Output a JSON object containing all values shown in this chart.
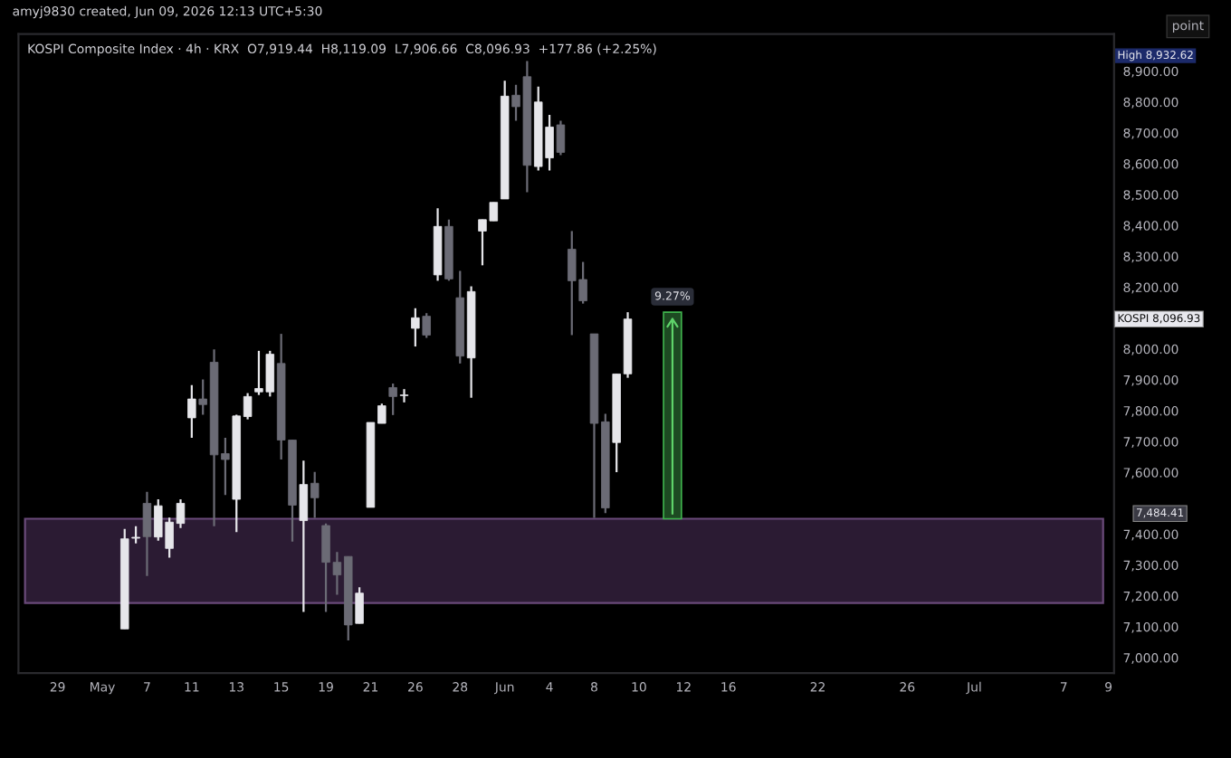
{
  "chart_data": {
    "type": "candlestick",
    "title": "KOSPI Composite Index · 4h · KRX",
    "subtitle": "O7,919.44  H8,119.09  L7,906.66  C8,096.93  +177.86 (+2.25%)",
    "categories": [
      null,
      null,
      null,
      "29",
      null,
      null,
      null,
      "May",
      null,
      null,
      null,
      "7",
      null,
      null,
      null,
      "11",
      null,
      null,
      null,
      "13",
      null,
      null,
      null,
      "15",
      null,
      null,
      null,
      "19",
      null,
      null,
      null,
      "21",
      null,
      null,
      null,
      "26",
      null,
      null,
      null,
      "28",
      null,
      null,
      null,
      "Jun",
      null,
      null,
      null,
      "4",
      null,
      null,
      null,
      "8",
      null,
      null,
      null,
      "10",
      null,
      null,
      null,
      "12",
      null,
      null,
      null,
      "16",
      null,
      null,
      null,
      null,
      null,
      null,
      null,
      "22",
      null,
      null,
      null,
      null,
      null,
      null,
      null,
      "26",
      null,
      null,
      null,
      null,
      null,
      "Jul",
      null,
      null,
      null,
      null,
      null,
      null,
      null,
      "7",
      null,
      null,
      null,
      "9"
    ],
    "ohlc": [
      null,
      null,
      null,
      null,
      null,
      null,
      null,
      null,
      null,
      [
        7093,
        7417,
        7093,
        7385
      ],
      [
        7387,
        7426,
        7370,
        7390
      ],
      [
        7500,
        7537,
        7265,
        7392
      ],
      [
        7391,
        7513,
        7379,
        7492
      ],
      [
        7354,
        7454,
        7324,
        7439
      ],
      [
        7435,
        7513,
        7420,
        7500
      ],
      [
        7777,
        7883,
        7712,
        7838
      ],
      [
        7838,
        7901,
        7787,
        7820
      ],
      [
        7957,
        7999,
        7426,
        7657
      ],
      [
        7661,
        7712,
        7527,
        7642
      ],
      [
        7513,
        7787,
        7407,
        7783
      ],
      [
        7781,
        7857,
        7772,
        7846
      ],
      [
        7861,
        7994,
        7851,
        7872
      ],
      [
        7861,
        7994,
        7846,
        7983
      ],
      [
        7953,
        8049,
        7642,
        7705
      ],
      [
        7705,
        7705,
        7376,
        7494
      ],
      [
        7444,
        7638,
        7148,
        7561
      ],
      [
        7565,
        7602,
        7453,
        7518
      ],
      [
        7428,
        7435,
        7148,
        7309
      ],
      [
        7309,
        7342,
        7204,
        7268
      ],
      [
        7328,
        7328,
        7056,
        7106
      ],
      [
        7111,
        7228,
        7111,
        7209
      ],
      [
        7487,
        7762,
        7487,
        7762
      ],
      [
        7759,
        7823,
        7759,
        7816
      ],
      [
        7875,
        7888,
        7786,
        7846
      ],
      [
        7849,
        7870,
        7827,
        7851
      ],
      [
        8067,
        8132,
        8008,
        8101
      ],
      [
        8106,
        8116,
        8036,
        8045
      ],
      [
        8240,
        8456,
        8221,
        8397
      ],
      [
        8397,
        8419,
        8221,
        8227
      ],
      [
        8166,
        8253,
        7953,
        7977
      ],
      [
        7971,
        8203,
        7842,
        8186
      ],
      [
        8382,
        8419,
        8271,
        8419
      ],
      [
        8415,
        8475,
        8415,
        8475
      ],
      [
        8486,
        8869,
        8486,
        8819
      ],
      [
        8822,
        8856,
        8739,
        8785
      ],
      [
        8882,
        8933,
        8508,
        8595
      ],
      [
        8591,
        8850,
        8578,
        8800
      ],
      [
        8619,
        8758,
        8578,
        8719
      ],
      [
        8726,
        8739,
        8628,
        8637
      ],
      [
        8323,
        8382,
        8045,
        8221
      ],
      [
        8225,
        8282,
        8147,
        8156
      ],
      [
        8049,
        8049,
        7453,
        7759
      ],
      [
        7764,
        7790,
        7468,
        7485
      ],
      [
        7697,
        7919,
        7601,
        7919
      ],
      [
        7919.44,
        8119.09,
        7906.66,
        8096.93
      ],
      null,
      null,
      null,
      null,
      null,
      null,
      null,
      null,
      null,
      null,
      null,
      null,
      null,
      null,
      null,
      null,
      null,
      null,
      null,
      null,
      null,
      null,
      null,
      null,
      null,
      null,
      null,
      null,
      null,
      null,
      null,
      null,
      null,
      null,
      null,
      null,
      null,
      null,
      null,
      null,
      null,
      null,
      null
    ],
    "colors": [
      null,
      null,
      null,
      null,
      null,
      null,
      null,
      null,
      null,
      "#e6e6ea",
      "#e6e6ea",
      "#6b6b75",
      "#e6e6ea",
      "#e6e6ea",
      "#e6e6ea",
      "#e6e6ea",
      "#6b6b75",
      "#6b6b75",
      "#6b6b75",
      "#e6e6ea",
      "#e6e6ea",
      "#e6e6ea",
      "#e6e6ea",
      "#6b6b75",
      "#6b6b75",
      "#e6e6ea",
      "#6b6b75",
      "#6b6b75",
      "#6b6b75",
      "#6b6b75",
      "#e6e6ea",
      "#e6e6ea",
      "#e6e6ea",
      "#6b6b75",
      "#e6e6ea",
      "#e6e6ea",
      "#6b6b75",
      "#e6e6ea",
      "#6b6b75",
      "#6b6b75",
      "#e6e6ea",
      "#e6e6ea",
      "#e6e6ea",
      "#e6e6ea",
      "#6b6b75",
      "#6b6b75",
      "#e6e6ea",
      "#e6e6ea",
      "#6b6b75",
      "#6b6b75",
      "#6b6b75",
      "#6b6b75",
      "#6b6b75",
      "#e6e6ea",
      "#e6e6ea",
      null,
      null,
      null,
      null,
      null,
      null,
      null,
      null,
      null,
      null,
      null,
      null,
      null,
      null,
      null,
      null,
      null,
      null,
      null,
      null,
      null,
      null,
      null,
      null,
      null,
      null,
      null,
      null,
      null,
      null,
      null,
      null,
      null,
      null,
      null,
      null,
      null,
      null,
      null,
      null,
      null,
      null,
      null
    ],
    "ylim": [
      6950,
      9020
    ],
    "yticks": [
      {
        "value": 7000,
        "label": "7,000.00"
      },
      {
        "value": 7100,
        "label": "7,100.00"
      },
      {
        "value": 7200,
        "label": "7,200.00"
      },
      {
        "value": 7300,
        "label": "7,300.00"
      },
      {
        "value": 7400,
        "label": "7,400.00"
      },
      {
        "value": 7600,
        "label": "7,600.00"
      },
      {
        "value": 7700,
        "label": "7,700.00"
      },
      {
        "value": 7800,
        "label": "7,800.00"
      },
      {
        "value": 7900,
        "label": "7,900.00"
      },
      {
        "value": 8000,
        "label": "8,000.00"
      },
      {
        "value": 8200,
        "label": "8,200.00"
      },
      {
        "value": 8300,
        "label": "8,300.00"
      },
      {
        "value": 8400,
        "label": "8,400.00"
      },
      {
        "value": 8500,
        "label": "8,500.00"
      },
      {
        "value": 8600,
        "label": "8,600.00"
      },
      {
        "value": 8700,
        "label": "8,700.00"
      },
      {
        "value": 8800,
        "label": "8,800.00"
      },
      {
        "value": 8900,
        "label": "8,900.00"
      }
    ],
    "bands": [
      {
        "axis": "y",
        "from": 7177,
        "to": 7450,
        "color": "#2b1b33"
      }
    ],
    "annotations": [
      "amyj9830 created, Jun 09, 2026 12:13 UTC+5:30",
      "point",
      "9.27%",
      "High 8,932.62",
      "KOSPI 8,096.93",
      "7,484.41"
    ]
  }
}
